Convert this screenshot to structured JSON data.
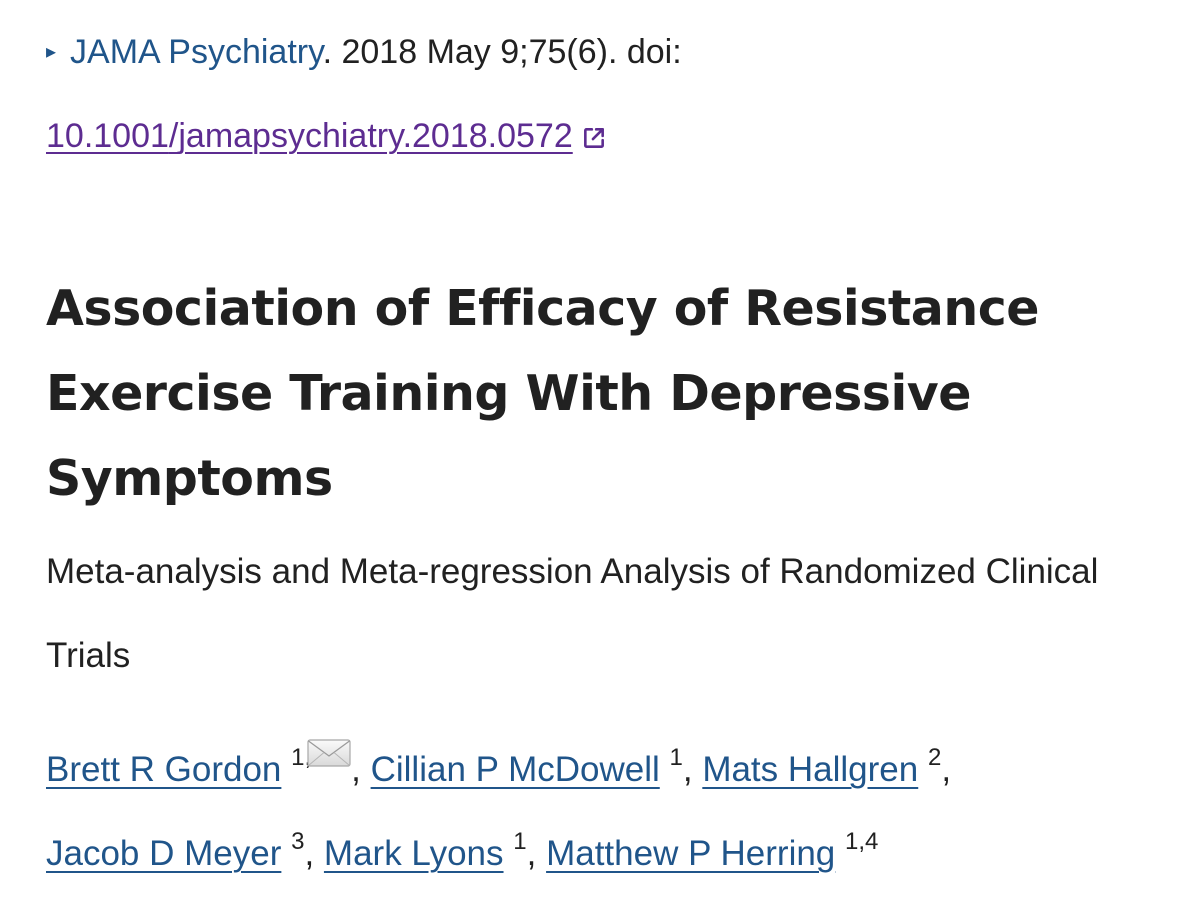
{
  "citation": {
    "marker": "▸",
    "journal": "JAMA Psychiatry",
    "details": ". 2018 May 9;75(6). doi:",
    "doi_prefix": "10.1001",
    "doi_separator": "/",
    "doi_suffix": "jamapsychiatry.2018.0572",
    "external_link_icon": "external-link-icon"
  },
  "article": {
    "title": "Association of Efficacy of Resistance Exercise Training With Depressive Symptoms",
    "subtitle": "Meta-analysis and Meta-regression Analysis of Randomized Clinical Trials"
  },
  "authors": [
    {
      "name": "Brett R Gordon",
      "affiliation": "1,"
    },
    {
      "name": "Cillian P McDowell",
      "affiliation": "1"
    },
    {
      "name": "Mats Hallgren",
      "affiliation": "2"
    },
    {
      "name": "Jacob D Meyer",
      "affiliation": "3"
    },
    {
      "name": "Mark Lyons",
      "affiliation": "1"
    },
    {
      "name": "Matthew P Herring",
      "affiliation": "1,4"
    }
  ],
  "separator": ", ",
  "colors": {
    "text": "#212121",
    "link_blue": "#20558a",
    "link_visited": "#5d2c91"
  }
}
